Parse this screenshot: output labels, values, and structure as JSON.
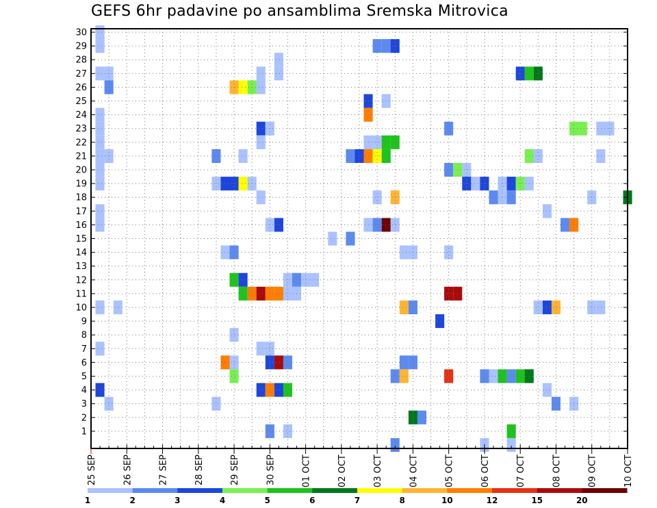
{
  "chart_data": {
    "type": "heatmap",
    "title": "GEFS 6hr padavine po ansamblima Sremska Mitrovica",
    "xlabel": "",
    "ylabel": "",
    "y_members": [
      1,
      2,
      3,
      4,
      5,
      6,
      7,
      8,
      9,
      10,
      11,
      12,
      13,
      14,
      15,
      16,
      17,
      18,
      19,
      20,
      21,
      22,
      23,
      24,
      25,
      26,
      27,
      28,
      29,
      30
    ],
    "ylim": [
      0,
      30
    ],
    "x_unit": "6h steps from 25 SEP 00z",
    "xlim": [
      0,
      60
    ],
    "x_tick_labels": [
      "25 SEP",
      "26 SEP",
      "27 SEP",
      "28 SEP",
      "29 SEP",
      "30 SEP",
      "01 OCT",
      "02 OCT",
      "03 OCT",
      "04 OCT",
      "05 OCT",
      "06 OCT",
      "07 OCT",
      "08 OCT",
      "09 OCT",
      "10 OCT"
    ],
    "grid": true,
    "legend_position": "bottom",
    "color_bins": [
      {
        "min": 1,
        "max": 2,
        "color": "#aac2ff"
      },
      {
        "min": 2,
        "max": 3,
        "color": "#5c8af0"
      },
      {
        "min": 3,
        "max": 4,
        "color": "#1e46dc"
      },
      {
        "min": 4,
        "max": 5,
        "color": "#78f050"
      },
      {
        "min": 5,
        "max": 6,
        "color": "#1ec31e"
      },
      {
        "min": 6,
        "max": 7,
        "color": "#00781a"
      },
      {
        "min": 7,
        "max": 8,
        "color": "#ffff00"
      },
      {
        "min": 8,
        "max": 10,
        "color": "#ffb432"
      },
      {
        "min": 10,
        "max": 12,
        "color": "#ff7d00"
      },
      {
        "min": 12,
        "max": 15,
        "color": "#e63214"
      },
      {
        "min": 15,
        "max": 20,
        "color": "#aa0a0a"
      },
      {
        "min": 20,
        "max": 99,
        "color": "#6e0000"
      }
    ],
    "legend_labels": [
      "1",
      "2",
      "3",
      "4",
      "5",
      "6",
      "7",
      "8",
      "10",
      "12",
      "15",
      "20"
    ],
    "cells": [
      [
        30,
        1,
        1.5
      ],
      [
        29,
        1,
        1.5
      ],
      [
        29,
        32,
        2.5
      ],
      [
        29,
        33,
        2.5
      ],
      [
        29,
        34,
        3.5
      ],
      [
        28,
        21,
        1.5
      ],
      [
        27,
        1,
        1.5
      ],
      [
        27,
        2,
        1.5
      ],
      [
        27,
        19,
        1.5
      ],
      [
        27,
        21,
        1.5
      ],
      [
        27,
        48,
        3.5
      ],
      [
        27,
        49,
        5.5
      ],
      [
        27,
        50,
        6.5
      ],
      [
        26,
        2,
        2.5
      ],
      [
        26,
        16,
        9
      ],
      [
        26,
        17,
        7.5
      ],
      [
        26,
        18,
        4.5
      ],
      [
        26,
        19,
        1.5
      ],
      [
        25,
        31,
        3.5
      ],
      [
        25,
        33,
        1.5
      ],
      [
        24,
        1,
        1.5
      ],
      [
        24,
        31,
        11
      ],
      [
        23,
        1,
        1.5
      ],
      [
        23,
        19,
        3.5
      ],
      [
        23,
        20,
        1.5
      ],
      [
        23,
        40,
        2.5
      ],
      [
        23,
        54,
        4.5
      ],
      [
        23,
        55,
        4.5
      ],
      [
        23,
        57,
        1.5
      ],
      [
        23,
        58,
        1.5
      ],
      [
        22,
        1,
        1.5
      ],
      [
        22,
        19,
        1.5
      ],
      [
        22,
        31,
        1.5
      ],
      [
        22,
        32,
        1.5
      ],
      [
        22,
        33,
        5.5
      ],
      [
        22,
        34,
        5.5
      ],
      [
        21,
        1,
        1.5
      ],
      [
        21,
        2,
        1.5
      ],
      [
        21,
        14,
        2.5
      ],
      [
        21,
        17,
        1.5
      ],
      [
        21,
        29,
        2.5
      ],
      [
        21,
        30,
        3.5
      ],
      [
        21,
        31,
        11
      ],
      [
        21,
        32,
        7.5
      ],
      [
        21,
        33,
        5.5
      ],
      [
        21,
        49,
        4.5
      ],
      [
        21,
        50,
        1.5
      ],
      [
        21,
        57,
        1.5
      ],
      [
        20,
        1,
        1.5
      ],
      [
        20,
        40,
        2.5
      ],
      [
        20,
        41,
        4.5
      ],
      [
        20,
        42,
        1.5
      ],
      [
        19,
        1,
        1.5
      ],
      [
        19,
        14,
        1.5
      ],
      [
        19,
        15,
        3.5
      ],
      [
        19,
        16,
        3.5
      ],
      [
        19,
        17,
        7.5
      ],
      [
        19,
        18,
        1.5
      ],
      [
        19,
        42,
        3.5
      ],
      [
        19,
        43,
        1.5
      ],
      [
        19,
        44,
        3.5
      ],
      [
        19,
        46,
        1.5
      ],
      [
        19,
        47,
        3.5
      ],
      [
        19,
        48,
        4.5
      ],
      [
        19,
        49,
        1.5
      ],
      [
        18,
        19,
        1.5
      ],
      [
        18,
        32,
        1.5
      ],
      [
        18,
        34,
        9
      ],
      [
        18,
        45,
        2.5
      ],
      [
        18,
        46,
        1.5
      ],
      [
        18,
        47,
        2.5
      ],
      [
        18,
        56,
        1.5
      ],
      [
        18,
        60,
        6.5
      ],
      [
        17,
        1,
        1.5
      ],
      [
        17,
        51,
        1.5
      ],
      [
        16,
        1,
        1.5
      ],
      [
        16,
        20,
        1.5
      ],
      [
        16,
        21,
        3.5
      ],
      [
        16,
        31,
        1.5
      ],
      [
        16,
        32,
        2.5
      ],
      [
        16,
        33,
        25
      ],
      [
        16,
        34,
        1.5
      ],
      [
        16,
        53,
        2.5
      ],
      [
        16,
        54,
        11
      ],
      [
        15,
        27,
        1.5
      ],
      [
        15,
        29,
        2.5
      ],
      [
        14,
        15,
        1.5
      ],
      [
        14,
        16,
        2.5
      ],
      [
        14,
        35,
        1.5
      ],
      [
        14,
        36,
        1.5
      ],
      [
        14,
        40,
        1.5
      ],
      [
        12,
        16,
        5.5
      ],
      [
        12,
        17,
        3.5
      ],
      [
        12,
        22,
        1.5
      ],
      [
        12,
        23,
        2.5
      ],
      [
        12,
        24,
        1.5
      ],
      [
        12,
        25,
        1.5
      ],
      [
        11,
        17,
        5.5
      ],
      [
        11,
        18,
        11
      ],
      [
        11,
        19,
        17
      ],
      [
        11,
        20,
        11
      ],
      [
        11,
        21,
        11
      ],
      [
        11,
        22,
        1.5
      ],
      [
        11,
        23,
        1.5
      ],
      [
        11,
        40,
        17
      ],
      [
        11,
        41,
        17
      ],
      [
        10,
        1,
        1.5
      ],
      [
        10,
        3,
        1.5
      ],
      [
        10,
        35,
        9
      ],
      [
        10,
        36,
        2.5
      ],
      [
        10,
        50,
        1.5
      ],
      [
        10,
        51,
        3.5
      ],
      [
        10,
        52,
        9
      ],
      [
        10,
        56,
        1.5
      ],
      [
        10,
        57,
        1.5
      ],
      [
        9,
        39,
        3.5
      ],
      [
        8,
        16,
        1.5
      ],
      [
        7,
        1,
        1.5
      ],
      [
        7,
        19,
        1.5
      ],
      [
        7,
        20,
        1.5
      ],
      [
        6,
        15,
        11
      ],
      [
        6,
        16,
        1.5
      ],
      [
        6,
        20,
        3.5
      ],
      [
        6,
        21,
        17
      ],
      [
        6,
        22,
        2.5
      ],
      [
        6,
        35,
        2.5
      ],
      [
        6,
        36,
        2.5
      ],
      [
        5,
        16,
        4.5
      ],
      [
        5,
        34,
        2.5
      ],
      [
        5,
        35,
        9
      ],
      [
        5,
        40,
        13
      ],
      [
        5,
        44,
        2.5
      ],
      [
        5,
        45,
        1.5
      ],
      [
        5,
        46,
        5.5
      ],
      [
        5,
        47,
        2.5
      ],
      [
        5,
        48,
        5.5
      ],
      [
        5,
        49,
        6.5
      ],
      [
        4,
        1,
        3.5
      ],
      [
        4,
        19,
        3.5
      ],
      [
        4,
        20,
        11
      ],
      [
        4,
        21,
        3.5
      ],
      [
        4,
        22,
        5.5
      ],
      [
        4,
        51,
        1.5
      ],
      [
        3,
        2,
        1.5
      ],
      [
        3,
        14,
        1.5
      ],
      [
        3,
        52,
        2.5
      ],
      [
        3,
        54,
        1.5
      ],
      [
        2,
        36,
        6.5
      ],
      [
        2,
        37,
        2.5
      ],
      [
        1,
        20,
        2.5
      ],
      [
        1,
        22,
        1.5
      ],
      [
        1,
        47,
        5.5
      ],
      [
        0,
        34,
        2.5
      ],
      [
        0,
        44,
        1.5
      ],
      [
        0,
        47,
        1.5
      ]
    ]
  }
}
